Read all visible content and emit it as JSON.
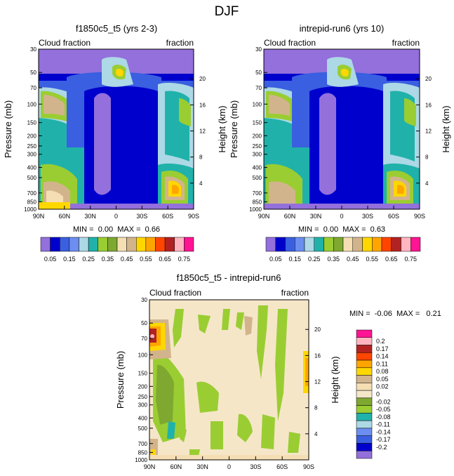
{
  "title": "DJF",
  "colors": {
    "top_palette": [
      "#9370DB",
      "#0000CD",
      "#3A5FE0",
      "#6B8EF0",
      "#ADD8E6",
      "#20B2AA",
      "#9ACD32",
      "#7FA830",
      "#F5DEB3",
      "#D2B48C",
      "#FFD700",
      "#FFA500",
      "#FF4500",
      "#B22222",
      "#FFB6C1",
      "#FF1493"
    ],
    "diff_palette": [
      "#FF1493",
      "#FFB6C1",
      "#B22222",
      "#FF4500",
      "#FFA500",
      "#FFD700",
      "#D2B48C",
      "#F5DEB3",
      "#F5E6C8",
      "#7FA830",
      "#9ACD32",
      "#20B2AA",
      "#ADD8E6",
      "#6B8EF0",
      "#3A5FE0",
      "#0000CD",
      "#9370DB"
    ]
  },
  "chart_data": [
    {
      "type": "heatmap",
      "title": "f1850c5_t5 (yrs 2-3)",
      "left_label": "Cloud fraction",
      "right_label": "fraction",
      "ylabel": "Pressure (mb)",
      "y2label": "Height (km)",
      "xticks": [
        "90N",
        "60N",
        "30N",
        "0",
        "30S",
        "60S",
        "90S"
      ],
      "yticks": [
        "30",
        "50",
        "70",
        "100",
        "150",
        "200",
        "250",
        "300",
        "400",
        "500",
        "700",
        "850",
        "1000"
      ],
      "y2ticks": [
        "20",
        "16",
        "12",
        "8",
        "4"
      ],
      "stats_text": "MIN =  0.00  MAX =  0.66",
      "min": 0.0,
      "max": 0.66,
      "colorbar_labels": [
        "0.05",
        "0.15",
        "0.25",
        "0.35",
        "0.45",
        "0.55",
        "0.65",
        "0.75"
      ]
    },
    {
      "type": "heatmap",
      "title": "intrepid-run6 (yrs 10)",
      "left_label": "Cloud fraction",
      "right_label": "fraction",
      "ylabel": "Pressure (mb)",
      "y2label": "Height (km)",
      "xticks": [
        "90N",
        "60N",
        "30N",
        "0",
        "30S",
        "60S",
        "90S"
      ],
      "yticks": [
        "30",
        "50",
        "70",
        "100",
        "150",
        "200",
        "250",
        "300",
        "400",
        "500",
        "700",
        "850",
        "1000"
      ],
      "y2ticks": [
        "20",
        "16",
        "12",
        "8",
        "4"
      ],
      "stats_text": "MIN =  0.00  MAX =  0.63",
      "min": 0.0,
      "max": 0.63,
      "colorbar_labels": [
        "0.05",
        "0.15",
        "0.25",
        "0.35",
        "0.45",
        "0.55",
        "0.65",
        "0.75"
      ]
    },
    {
      "type": "heatmap",
      "title": "f1850c5_t5 - intrepid-run6",
      "left_label": "Cloud fraction",
      "right_label": "fraction",
      "ylabel": "Pressure (mb)",
      "y2label": "Height (km)",
      "xticks": [
        "90N",
        "60N",
        "30N",
        "0",
        "30S",
        "60S",
        "90S"
      ],
      "yticks": [
        "30",
        "50",
        "70",
        "100",
        "150",
        "200",
        "250",
        "300",
        "400",
        "500",
        "700",
        "850",
        "1000"
      ],
      "y2ticks": [
        "20",
        "16",
        "12",
        "8",
        "4"
      ],
      "stats_text": "MIN =  -0.06  MAX =   0.21",
      "min": -0.06,
      "max": 0.21,
      "colorbar_labels": [
        "0.2",
        "0.17",
        "0.14",
        "0.11",
        "0.08",
        "0.05",
        "0.02",
        "0",
        "-0.02",
        "-0.05",
        "-0.08",
        "-0.11",
        "-0.14",
        "-0.17",
        "-0.2"
      ]
    }
  ]
}
